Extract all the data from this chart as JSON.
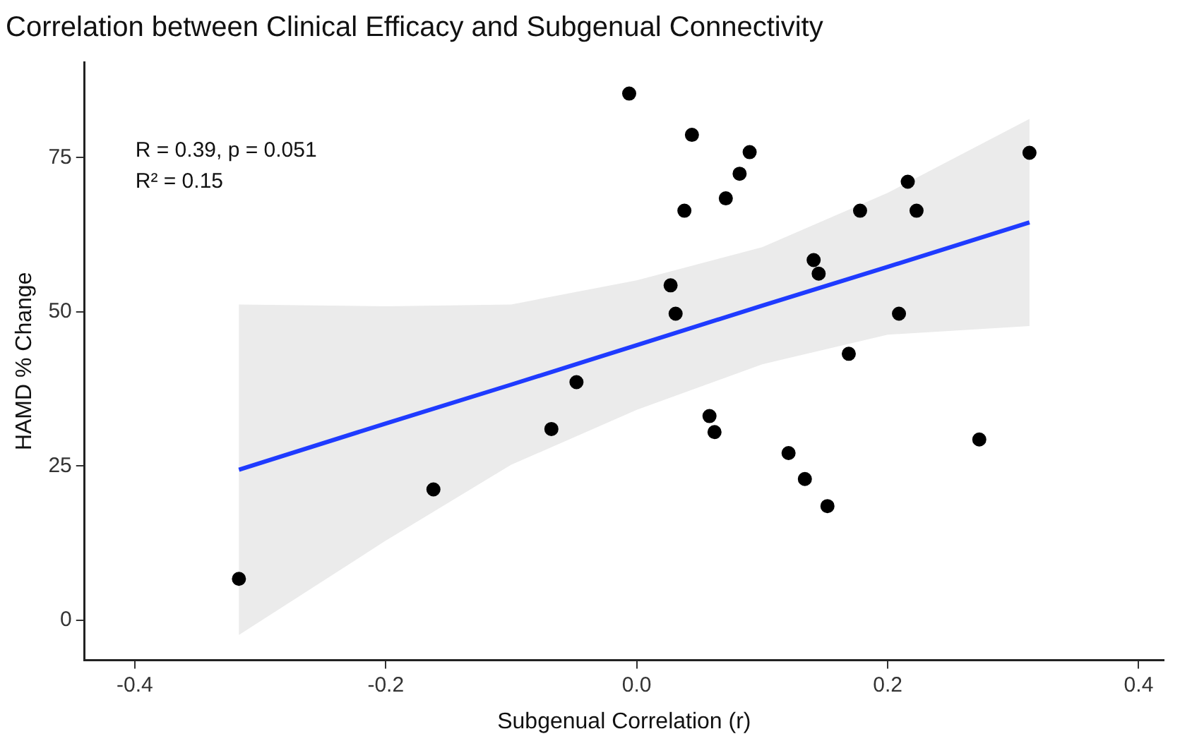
{
  "chart_data": {
    "type": "scatter",
    "title": "Correlation between Clinical Efficacy and Subgenual Connectivity",
    "xlabel": "Subgenual Correlation (r)",
    "ylabel": "HAMD % Change",
    "annotations": [
      "R = 0.39, p = 0.051",
      "R² = 0.15"
    ],
    "series": [
      {
        "color": "#000000",
        "marker": "circle",
        "x": [
          -0.317,
          -0.162,
          -0.068,
          -0.048,
          -0.006,
          0.027,
          0.031,
          0.038,
          0.044,
          0.09,
          0.082,
          0.071,
          0.178,
          0.216,
          0.223,
          0.313,
          0.141,
          0.145,
          0.209,
          0.169,
          0.058,
          0.062,
          0.121,
          0.134,
          0.152,
          0.273
        ],
        "values": [
          6.7,
          21.2,
          31.0,
          38.6,
          85.4,
          54.3,
          49.7,
          66.4,
          78.7,
          75.9,
          72.4,
          68.4,
          66.4,
          71.1,
          66.4,
          75.8,
          58.4,
          56.2,
          49.7,
          43.2,
          33.1,
          30.5,
          27.1,
          22.9,
          18.5,
          29.3
        ]
      },
      {
        "type": "line",
        "marker": "none",
        "color": "#1f3bff",
        "x": [
          -0.317,
          -0.2,
          -0.1,
          0,
          0.1,
          0.2,
          0.313
        ],
        "values": [
          24.4,
          31.9,
          38.2,
          44.6,
          51.0,
          57.3,
          64.5
        ],
        "lower": [
          -2.4,
          12.9,
          25.2,
          34.1,
          41.5,
          46.3,
          47.7
        ],
        "upper": [
          51.2,
          50.9,
          51.2,
          55.1,
          60.5,
          69.3,
          81.3
        ]
      }
    ],
    "xlim": [
      -0.44,
      0.42
    ],
    "xticks": [
      {
        "value": -0.4,
        "label": "-0.4"
      },
      {
        "value": -0.2,
        "label": "-0.2"
      },
      {
        "value": 0,
        "label": "0.0"
      },
      {
        "value": 0.2,
        "label": "0.2"
      },
      {
        "value": 0.4,
        "label": "0.4"
      }
    ],
    "ylim": [
      -6.5,
      90.5
    ],
    "yticks": [
      0,
      25,
      50,
      75
    ],
    "grid": false,
    "legend": false
  }
}
